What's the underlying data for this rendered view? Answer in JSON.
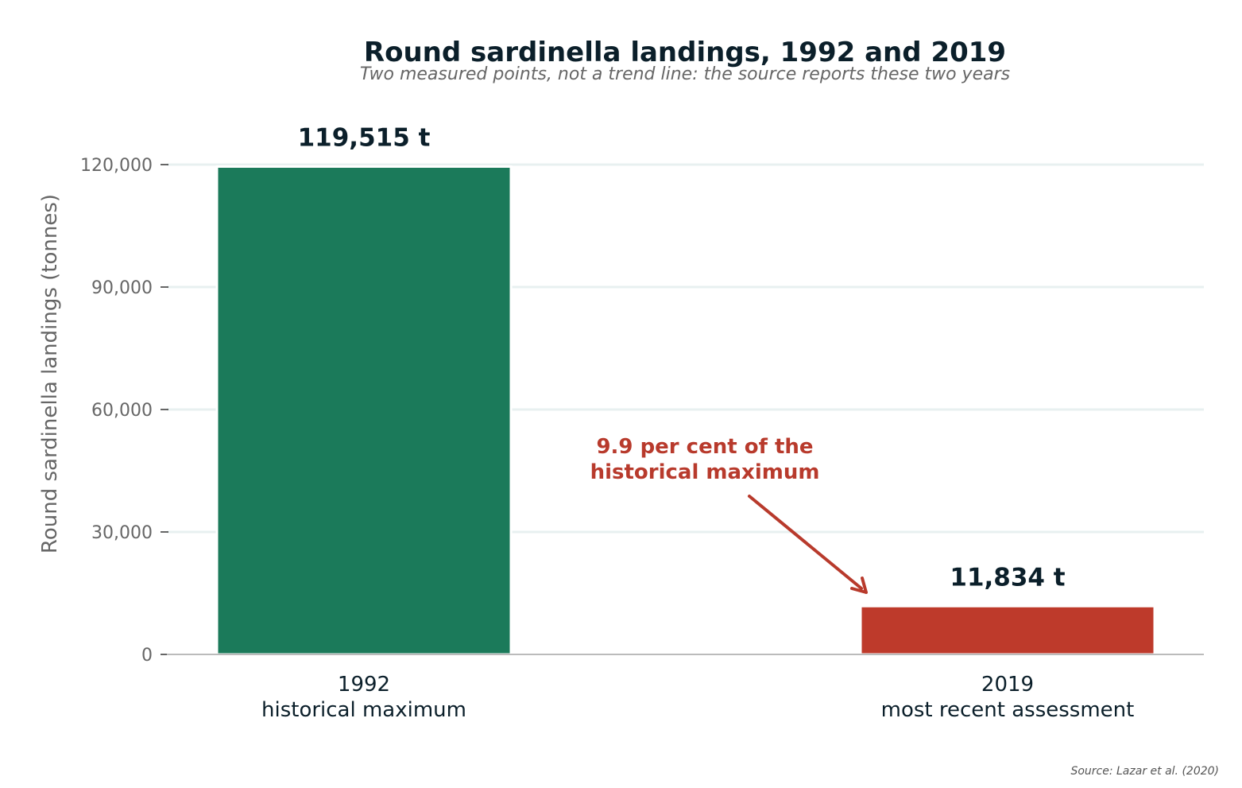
{
  "chart_data": {
    "type": "bar",
    "title": "Round sardinella landings, 1992 and 2019",
    "subtitle": "Two measured points, not a trend line: the source reports these two years",
    "ylabel": "Round sardinella landings (tonnes)",
    "xlabel": "",
    "ylim": [
      0,
      130000
    ],
    "yticks": [
      0,
      30000,
      60000,
      90000,
      120000
    ],
    "ytick_labels": [
      "0",
      "30,000",
      "60,000",
      "90,000",
      "120,000"
    ],
    "grid": true,
    "categories": [
      {
        "line1": "1992",
        "line2": "historical maximum"
      },
      {
        "line1": "2019",
        "line2": "most recent assessment"
      }
    ],
    "values": [
      119515,
      11834
    ],
    "data_labels": [
      "119,515 t",
      "11,834 t"
    ],
    "annotation": {
      "line1": "9.9 per cent of the",
      "line2": "historical maximum"
    },
    "source": "Source: Lazar et al. (2020)"
  },
  "colors": {
    "bar_1992": "#1b7a5a",
    "bar_2019": "#be3a2b",
    "annotation": "#b83a2c",
    "grid": "#e8f0f0",
    "axis": "#bbbbbb"
  }
}
